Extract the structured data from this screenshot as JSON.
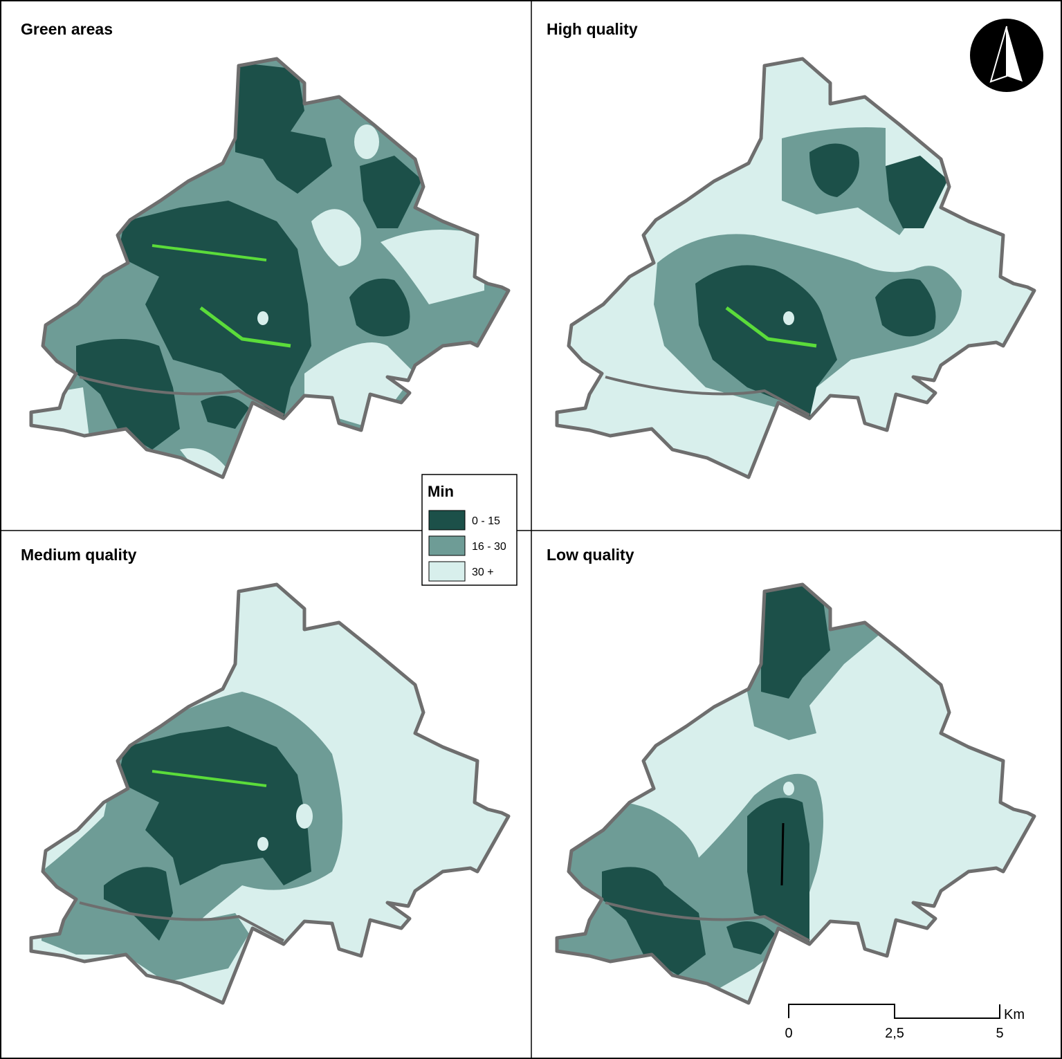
{
  "panels": [
    {
      "title": "Green areas"
    },
    {
      "title": "High quality"
    },
    {
      "title": "Medium quality"
    },
    {
      "title": "Low quality"
    }
  ],
  "legend": {
    "title": "Min",
    "items": [
      "0 - 15",
      "16 - 30",
      "30 +"
    ]
  },
  "scale_bar": {
    "labels": [
      "0",
      "2,5",
      "5"
    ],
    "unit": "Km"
  }
}
